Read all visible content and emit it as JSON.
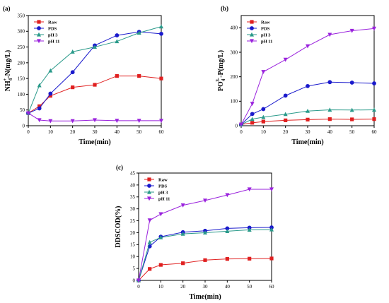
{
  "chart_data": [
    {
      "id": "a",
      "type": "line",
      "panel_label": "(a)",
      "xlabel": "Time(min)",
      "ylabel": "NH4+-N(mg/L)",
      "ylabel_parts": {
        "main": "NH",
        "sub": "4",
        "sup": "+",
        "rest": "-N(mg/L)"
      },
      "xlim": [
        0,
        60
      ],
      "ylim": [
        0,
        350
      ],
      "xticks": [
        0,
        10,
        20,
        30,
        40,
        50,
        60
      ],
      "yticks": [
        0,
        50,
        100,
        150,
        200,
        250,
        300,
        350
      ],
      "legend_position": "top-left",
      "series": [
        {
          "name": "Raw",
          "color": "#e02020",
          "marker": "square",
          "x": [
            0,
            5,
            10,
            20,
            30,
            40,
            50,
            60
          ],
          "y": [
            40,
            62,
            95,
            122,
            130,
            158,
            158,
            150
          ]
        },
        {
          "name": "PDS",
          "color": "#1a1acc",
          "marker": "circle",
          "x": [
            0,
            5,
            10,
            20,
            30,
            40,
            50,
            60
          ],
          "y": [
            40,
            55,
            102,
            170,
            255,
            287,
            298,
            292
          ]
        },
        {
          "name": "pH 3",
          "color": "#2a9a8a",
          "marker": "triangle-up",
          "x": [
            0,
            5,
            10,
            20,
            30,
            40,
            50,
            60
          ],
          "y": [
            40,
            128,
            175,
            235,
            250,
            268,
            295,
            315
          ]
        },
        {
          "name": "pH 11",
          "color": "#9a22dd",
          "marker": "triangle-down",
          "x": [
            0,
            5,
            10,
            20,
            30,
            40,
            50,
            60
          ],
          "y": [
            40,
            18,
            15,
            15,
            18,
            16,
            16,
            16
          ]
        }
      ]
    },
    {
      "id": "b",
      "type": "line",
      "panel_label": "(b)",
      "xlabel": "Time(min)",
      "ylabel": "PO43--P(mg/L)",
      "ylabel_parts": {
        "main": "PO",
        "sub": "4",
        "sup": "3-",
        "rest": "-P(mg/L)"
      },
      "xlim": [
        0,
        60
      ],
      "ylim": [
        0,
        450
      ],
      "xticks": [
        0,
        10,
        20,
        30,
        40,
        50,
        60
      ],
      "yticks": [
        0,
        100,
        200,
        300,
        400
      ],
      "legend_position": "top-left",
      "series": [
        {
          "name": "Raw",
          "color": "#e02020",
          "marker": "square",
          "x": [
            0,
            5,
            10,
            20,
            30,
            40,
            50,
            60
          ],
          "y": [
            5,
            12,
            17,
            22,
            25,
            27,
            26,
            27
          ]
        },
        {
          "name": "PDS",
          "color": "#1a1acc",
          "marker": "circle",
          "x": [
            0,
            5,
            10,
            20,
            30,
            40,
            50,
            60
          ],
          "y": [
            5,
            48,
            68,
            123,
            162,
            178,
            176,
            173
          ]
        },
        {
          "name": "pH 3",
          "color": "#2a9a8a",
          "marker": "triangle-up",
          "x": [
            0,
            5,
            10,
            20,
            30,
            40,
            50,
            60
          ],
          "y": [
            5,
            27,
            35,
            47,
            60,
            65,
            64,
            65
          ]
        },
        {
          "name": "pH 11",
          "color": "#9a22dd",
          "marker": "triangle-down",
          "x": [
            0,
            5,
            10,
            20,
            30,
            40,
            50,
            60
          ],
          "y": [
            5,
            90,
            220,
            270,
            325,
            372,
            388,
            397
          ]
        }
      ]
    },
    {
      "id": "c",
      "type": "line",
      "panel_label": "(c)",
      "xlabel": "Time(min)",
      "ylabel": "DDSCOD(%)",
      "xlim": [
        0,
        60
      ],
      "ylim": [
        0,
        45
      ],
      "xticks": [
        0,
        10,
        20,
        30,
        40,
        50,
        60
      ],
      "yticks": [
        0,
        5,
        10,
        15,
        20,
        25,
        30,
        35,
        40,
        45
      ],
      "legend_position": "top-left",
      "series": [
        {
          "name": "Raw",
          "color": "#e02020",
          "marker": "square",
          "x": [
            0,
            5,
            10,
            20,
            30,
            40,
            50,
            60
          ],
          "y": [
            0,
            4.8,
            6.5,
            7.2,
            8.5,
            9.0,
            9.1,
            9.2
          ]
        },
        {
          "name": "PDS",
          "color": "#1a1acc",
          "marker": "circle",
          "x": [
            0,
            5,
            10,
            20,
            30,
            40,
            50,
            60
          ],
          "y": [
            0,
            14.3,
            18.3,
            20.2,
            20.8,
            21.8,
            22.1,
            22.2
          ]
        },
        {
          "name": "pH 3",
          "color": "#2a9a8a",
          "marker": "triangle-up",
          "x": [
            0,
            5,
            10,
            20,
            30,
            40,
            50,
            60
          ],
          "y": [
            0,
            16.0,
            18.0,
            19.5,
            20.0,
            20.6,
            21.2,
            21.3
          ]
        },
        {
          "name": "pH 11",
          "color": "#9a22dd",
          "marker": "triangle-down",
          "x": [
            0,
            5,
            10,
            20,
            30,
            40,
            50,
            60
          ],
          "y": [
            0,
            25.2,
            27.8,
            31.5,
            33.5,
            35.8,
            38.2,
            38.2
          ]
        }
      ]
    }
  ]
}
